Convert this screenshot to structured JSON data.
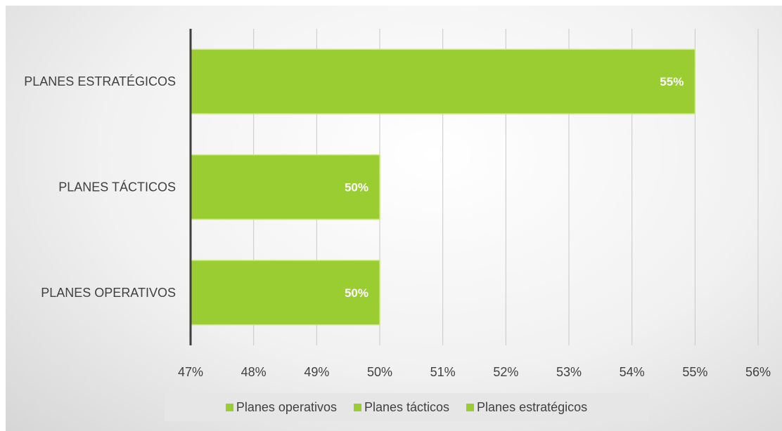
{
  "chart_data": {
    "type": "bar",
    "orientation": "horizontal",
    "categories": [
      "PLANES OPERATIVOS",
      "PLANES TÁCTICOS",
      "PLANES ESTRATÉGICOS"
    ],
    "values": [
      50,
      50,
      55
    ],
    "data_labels": [
      "50%",
      "50%",
      "55%"
    ],
    "xlim": [
      47,
      56
    ],
    "x_ticks": [
      "47%",
      "48%",
      "49%",
      "50%",
      "51%",
      "52%",
      "53%",
      "54%",
      "55%",
      "56%"
    ],
    "grid": true,
    "legend": {
      "placement": "bottom",
      "entries": [
        "Planes operativos",
        "Planes tácticos",
        "Planes estratégicos"
      ]
    },
    "bar_color": "#9acd32",
    "bar_border": "#c8e682"
  }
}
